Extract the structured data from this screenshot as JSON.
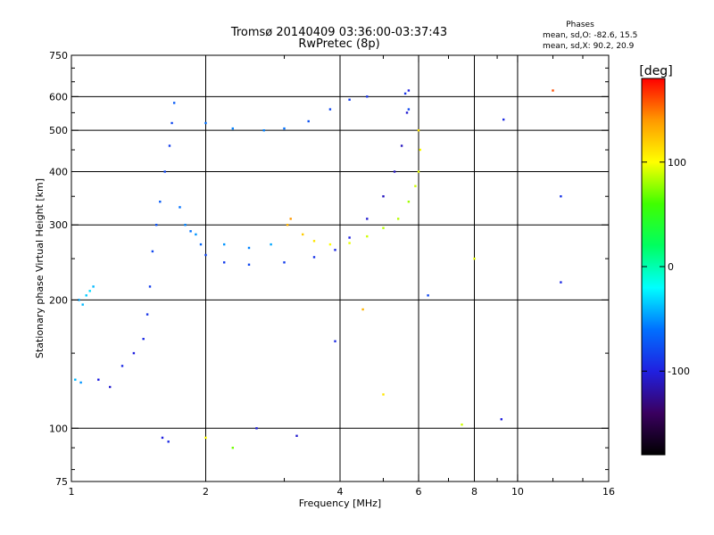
{
  "chart_data": {
    "type": "scatter",
    "title": "Tromsø 20140409 03:36:00-03:37:43",
    "subtitle": "RwPretec (8p)",
    "info_title": "Phases",
    "info_lines": [
      "mean, sd,O: -82.6, 15.5",
      "mean, sd,X:  90.2, 20.9"
    ],
    "xlabel": "Frequency [MHz]",
    "ylabel": "Stationary phase Virtual Height [km]",
    "x_scale": "log2",
    "y_scale": "log",
    "xlim": [
      1,
      16
    ],
    "ylim": [
      75,
      750
    ],
    "x_ticks": [
      1,
      2,
      4,
      6,
      8,
      10,
      16
    ],
    "x_minor_ticks": [
      3,
      5,
      7,
      9,
      12,
      14
    ],
    "y_ticks": [
      75,
      100,
      200,
      300,
      400,
      500,
      600,
      750
    ],
    "y_minor_ticks": [
      80,
      90,
      150,
      250,
      350,
      450,
      550,
      650,
      700
    ],
    "grid_x": [
      2,
      4,
      6,
      8,
      10
    ],
    "grid_y": [
      100,
      200,
      300,
      400,
      500,
      600
    ],
    "grid": true,
    "colorbar": {
      "label": "[deg]",
      "range": [
        -180,
        180
      ],
      "ticks": [
        100,
        0,
        -100
      ],
      "stops": [
        "#000000",
        "#3a0060",
        "#2020e0",
        "#0070ff",
        "#00ffff",
        "#00ff60",
        "#40ff00",
        "#ffff00",
        "#ff9900",
        "#ff0000"
      ]
    },
    "series": [
      {
        "points": [
          [
            1.06,
            195,
            -40
          ],
          [
            1.08,
            205,
            -35
          ],
          [
            1.12,
            215,
            -40
          ],
          [
            1.1,
            210,
            -30
          ],
          [
            1.04,
            200,
            -45
          ],
          [
            1.05,
            128,
            -50
          ],
          [
            1.15,
            130,
            -100
          ],
          [
            1.22,
            125,
            -105
          ],
          [
            1.3,
            140,
            -95
          ],
          [
            1.38,
            150,
            -100
          ],
          [
            1.45,
            162,
            -95
          ],
          [
            1.48,
            185,
            -90
          ],
          [
            1.5,
            215,
            -85
          ],
          [
            1.52,
            260,
            -80
          ],
          [
            1.55,
            300,
            -75
          ],
          [
            1.58,
            340,
            -70
          ],
          [
            1.62,
            400,
            -80
          ],
          [
            1.66,
            460,
            -85
          ],
          [
            1.68,
            520,
            -80
          ],
          [
            1.7,
            580,
            -70
          ],
          [
            1.75,
            330,
            -60
          ],
          [
            1.8,
            300,
            -55
          ],
          [
            1.85,
            290,
            -60
          ],
          [
            1.9,
            285,
            -50
          ],
          [
            1.95,
            270,
            -65
          ],
          [
            2.0,
            255,
            -80
          ],
          [
            2.2,
            245,
            -85
          ],
          [
            2.5,
            242,
            -80
          ],
          [
            3.0,
            245,
            -85
          ],
          [
            3.5,
            252,
            -90
          ],
          [
            3.9,
            262,
            -95
          ],
          [
            4.2,
            280,
            -100
          ],
          [
            4.6,
            310,
            -105
          ],
          [
            5.0,
            350,
            -110
          ],
          [
            5.3,
            400,
            -110
          ],
          [
            5.5,
            460,
            -110
          ],
          [
            5.65,
            550,
            -105
          ],
          [
            5.7,
            620,
            -100
          ],
          [
            2.0,
            520,
            -60
          ],
          [
            2.3,
            505,
            -55
          ],
          [
            2.7,
            500,
            -55
          ],
          [
            3.0,
            505,
            -60
          ],
          [
            3.4,
            525,
            -75
          ],
          [
            3.8,
            560,
            -80
          ],
          [
            4.2,
            590,
            -85
          ],
          [
            4.6,
            600,
            -90
          ],
          [
            2.2,
            270,
            -50
          ],
          [
            2.5,
            265,
            -55
          ],
          [
            2.8,
            270,
            -45
          ],
          [
            3.05,
            300,
            130
          ],
          [
            3.1,
            310,
            140
          ],
          [
            3.3,
            285,
            120
          ],
          [
            3.5,
            275,
            110
          ],
          [
            3.8,
            270,
            100
          ],
          [
            4.2,
            272,
            95
          ],
          [
            4.6,
            282,
            90
          ],
          [
            5.0,
            295,
            85
          ],
          [
            5.4,
            310,
            85
          ],
          [
            5.7,
            340,
            80
          ],
          [
            5.9,
            370,
            90
          ],
          [
            6.0,
            400,
            95
          ],
          [
            6.05,
            450,
            100
          ],
          [
            6.0,
            500,
            110
          ],
          [
            5.7,
            560,
            -80
          ],
          [
            5.6,
            610,
            -90
          ],
          [
            1.02,
            130,
            -40
          ],
          [
            1.6,
            95,
            -100
          ],
          [
            1.65,
            93,
            -95
          ],
          [
            2.0,
            95,
            100
          ],
          [
            2.3,
            90,
            70
          ],
          [
            2.6,
            100,
            -100
          ],
          [
            3.2,
            96,
            -105
          ],
          [
            3.9,
            160,
            -95
          ],
          [
            4.5,
            190,
            130
          ],
          [
            5.0,
            120,
            110
          ],
          [
            6.3,
            205,
            -80
          ],
          [
            7.5,
            102,
            90
          ],
          [
            9.2,
            105,
            -100
          ],
          [
            9.3,
            530,
            -95
          ],
          [
            12.0,
            620,
            160
          ],
          [
            12.5,
            350,
            -90
          ],
          [
            12.5,
            220,
            -95
          ],
          [
            8.0,
            250,
            95
          ]
        ]
      }
    ]
  }
}
